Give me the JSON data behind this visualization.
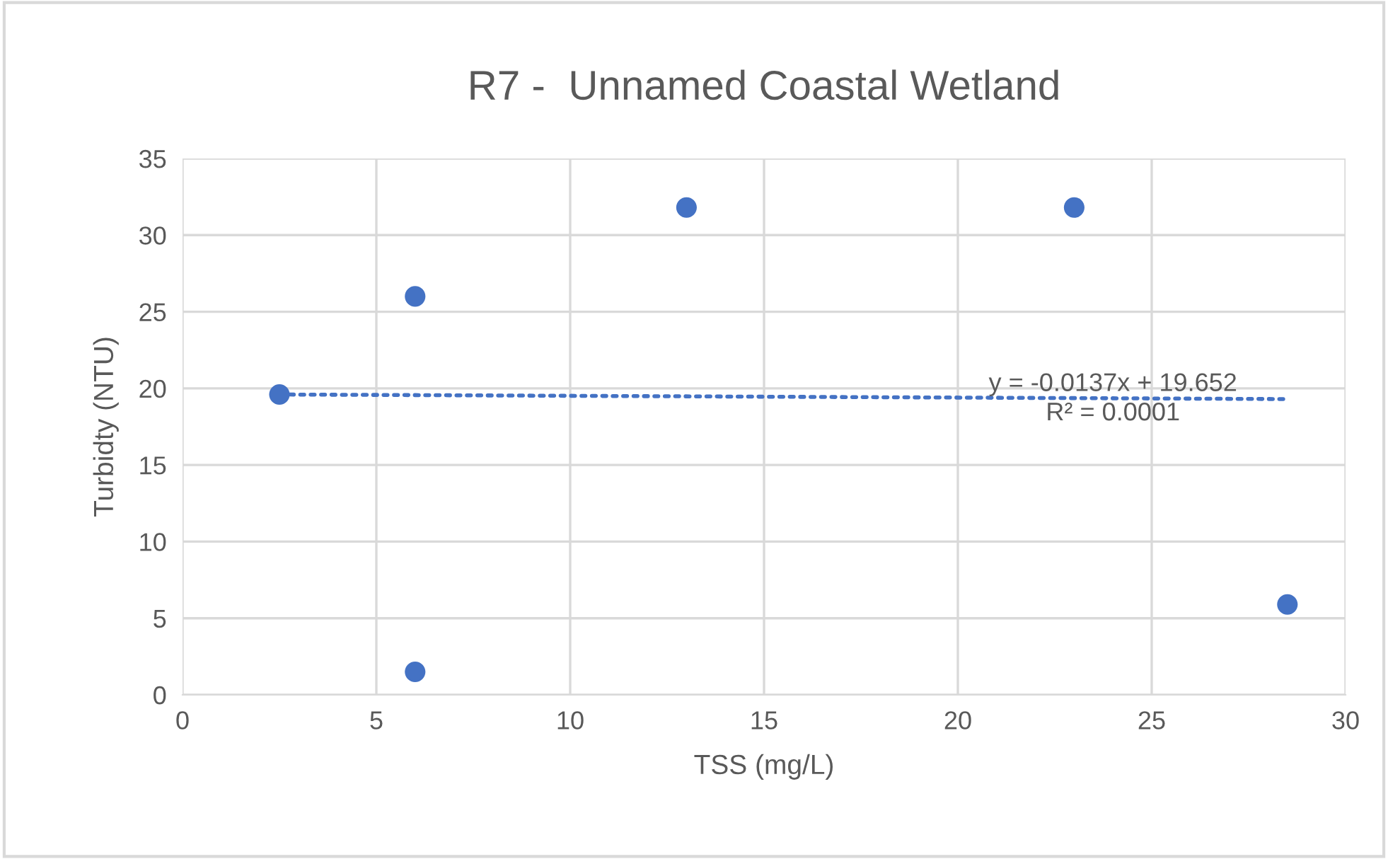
{
  "chart_data": {
    "type": "scatter",
    "title": "R7 -  Unnamed Coastal Wetland",
    "xlabel": "TSS (mg/L)",
    "ylabel": "Turbidty (NTU)",
    "xlim": [
      0,
      30
    ],
    "xticks": [
      0,
      5,
      10,
      15,
      20,
      25,
      30
    ],
    "ylim": [
      0,
      35
    ],
    "yticks": [
      0,
      5,
      10,
      15,
      20,
      25,
      30,
      35
    ],
    "grid": true,
    "series": [
      {
        "marker": "circle",
        "color": "#4472c4",
        "x": [
          2.5,
          6,
          6,
          13,
          23,
          28.5
        ],
        "values": [
          19.6,
          26,
          1.5,
          31.8,
          31.8,
          5.9
        ]
      },
      {
        "type": "line",
        "color": "#4472c4",
        "line_style": "dotted",
        "marker": "none",
        "x": [
          2.5,
          28.5
        ],
        "values": [
          19.6,
          19.3
        ]
      }
    ],
    "annotations": [
      {
        "text": "y = -0.0137x + 19.652\nR² = 0.0001",
        "x": 24,
        "y": 19.3
      }
    ]
  }
}
